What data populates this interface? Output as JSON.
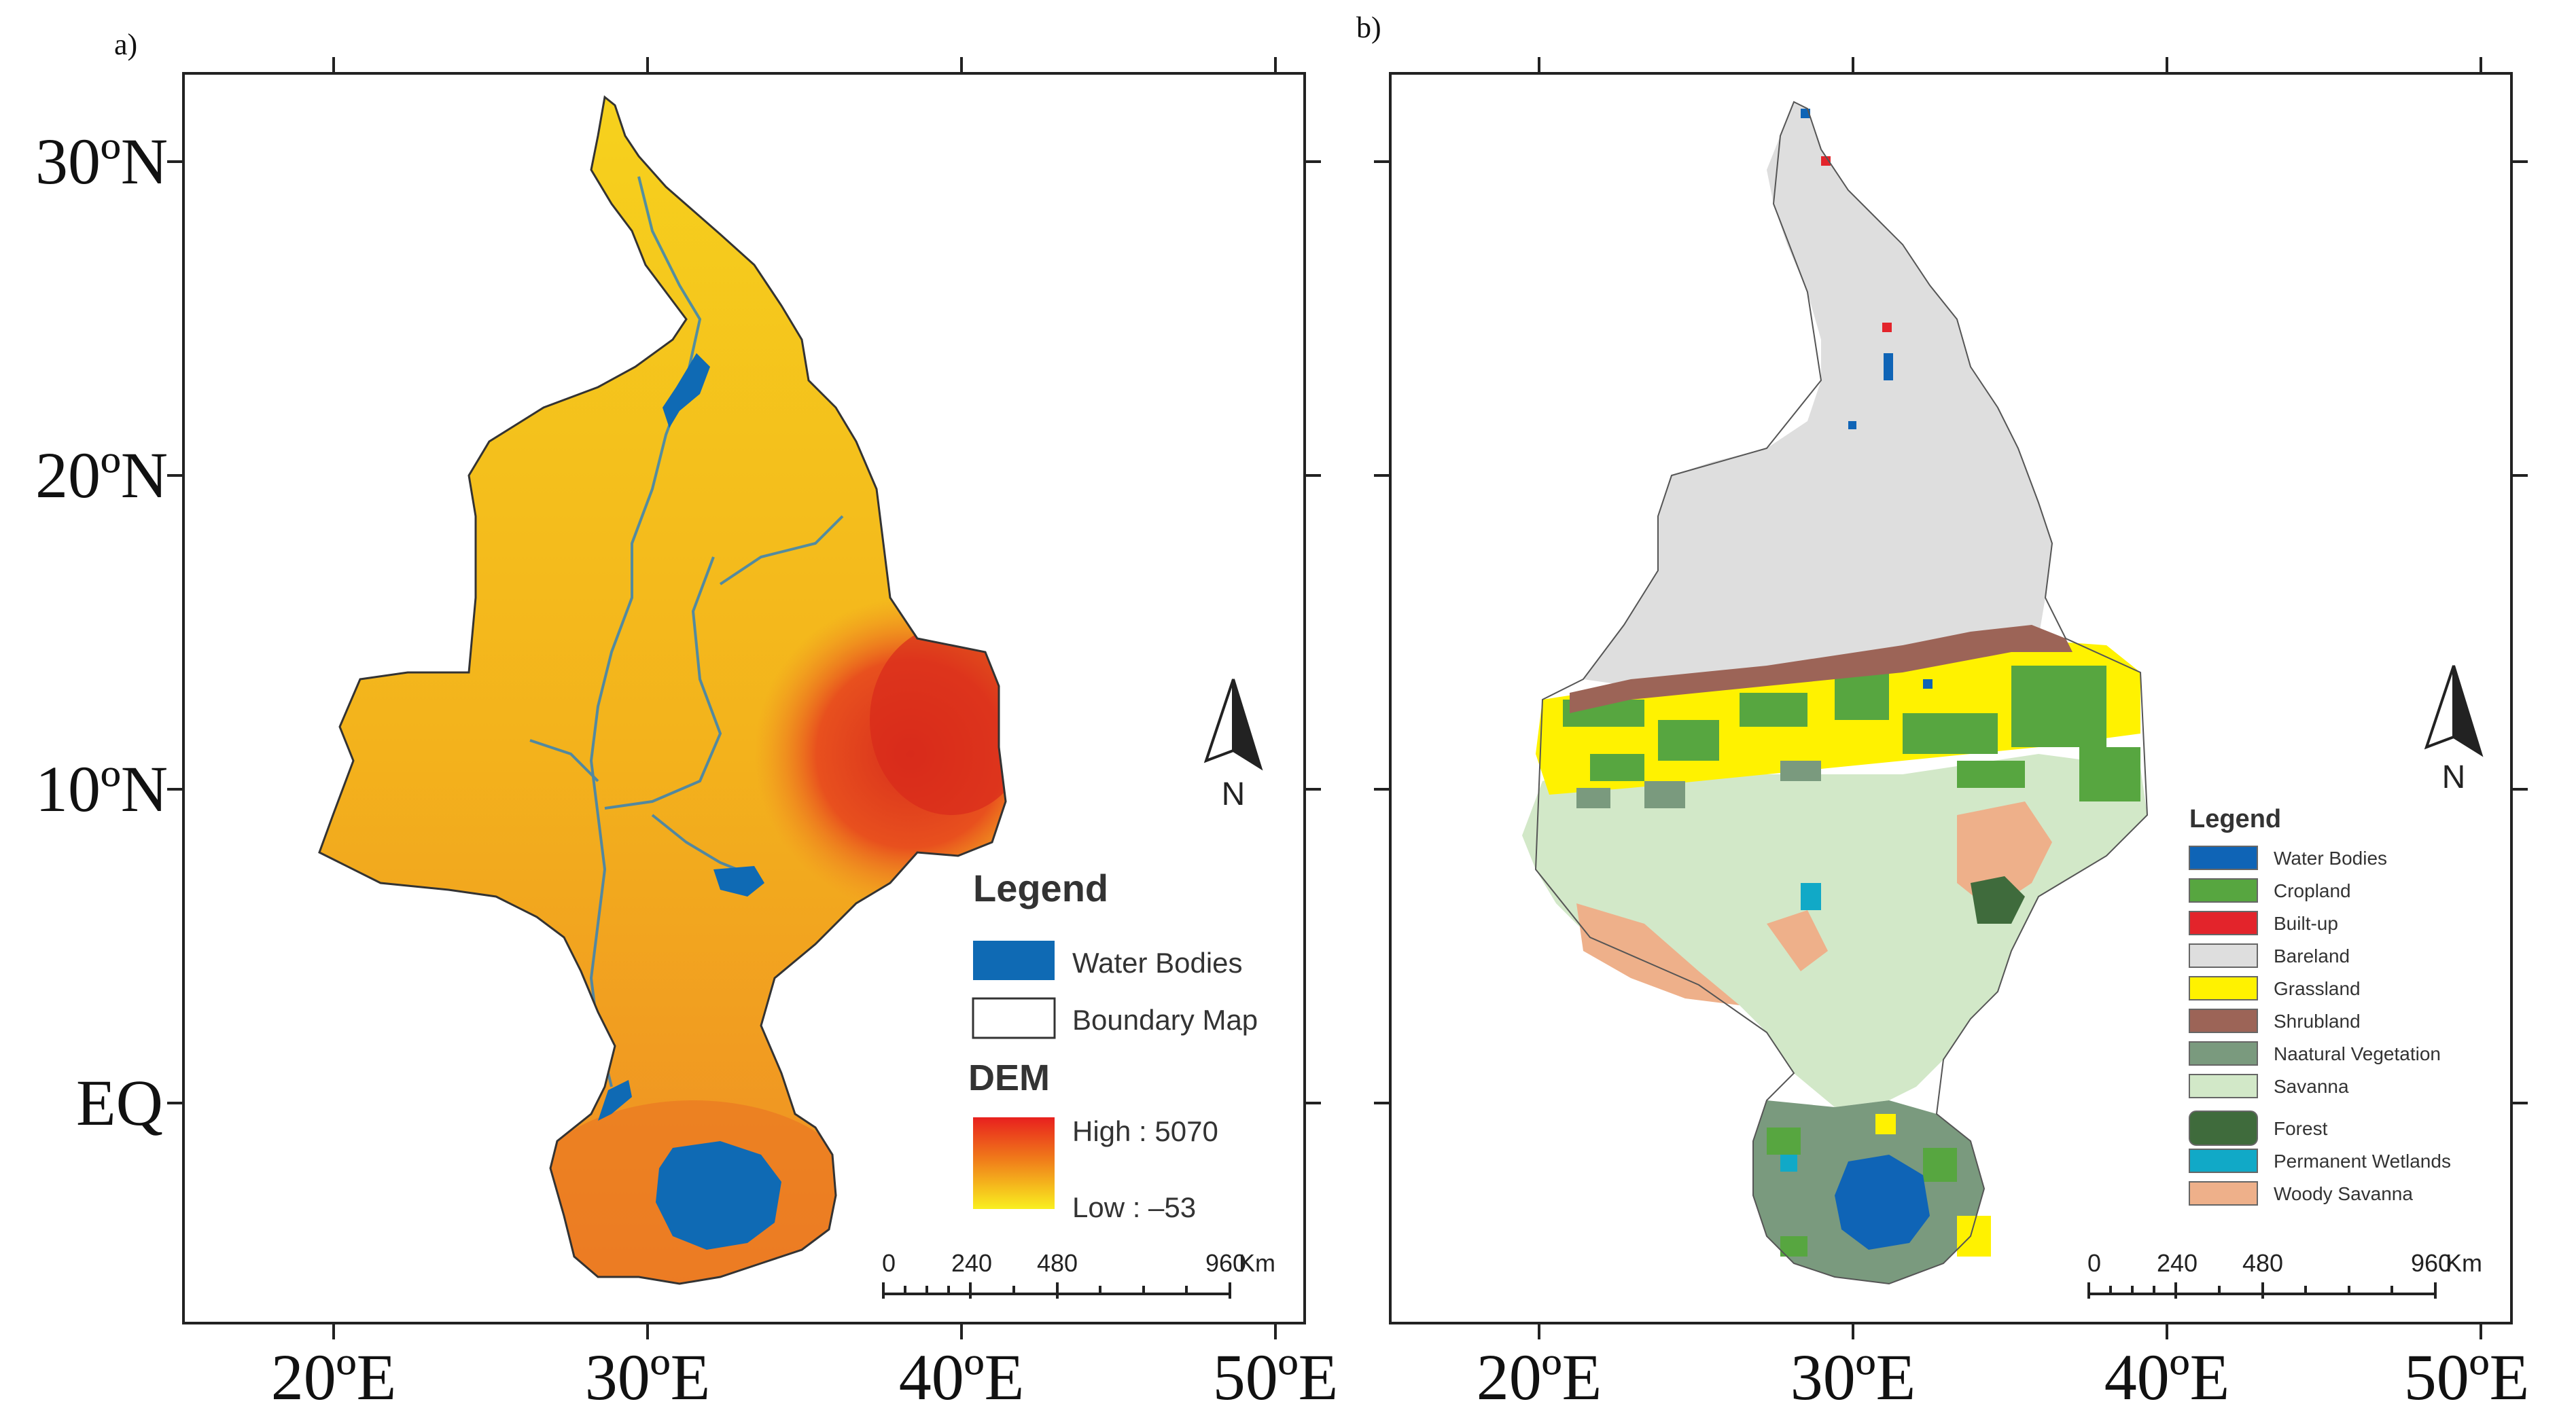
{
  "panels": [
    {
      "label": "a)",
      "legend": {
        "title": "Legend",
        "items": [
          {
            "label": "Water Bodies",
            "color": "#0f6ab4"
          },
          {
            "label": "Boundary Map",
            "color": "#ffffff"
          }
        ],
        "dem": {
          "title": "DEM",
          "high_label": "High : 5070",
          "low_label": "Low : –53",
          "gradient_top": "#e8201e",
          "gradient_mid": "#f07a1a",
          "gradient_bottom": "#f9ef1f"
        }
      },
      "scalebar": {
        "ticks": [
          "0",
          "240",
          "480",
          "960"
        ],
        "unit": "Km"
      },
      "north_label": "N"
    },
    {
      "label": "b)",
      "legend": {
        "title": "Legend",
        "items": [
          {
            "label": "Water Bodies",
            "color": "#0f64b6"
          },
          {
            "label": "Cropland",
            "color": "#57a640"
          },
          {
            "label": "Built-up",
            "color": "#e3242b"
          },
          {
            "label": "Bareland",
            "color": "#dedede"
          },
          {
            "label": "Grassland",
            "color": "#fff200"
          },
          {
            "label": "Shrubland",
            "color": "#9c6457"
          },
          {
            "label": "Naatural Vegetation",
            "color": "#7a9a7e"
          },
          {
            "label": "Savanna",
            "color": "#d2e8c8"
          },
          {
            "label": "Forest",
            "color": "#3f6b3c"
          },
          {
            "label": "Permanent Wetlands",
            "color": "#11a9c7"
          },
          {
            "label": "Woody Savanna",
            "color": "#eeb08a"
          }
        ]
      },
      "scalebar": {
        "ticks": [
          "0",
          "240",
          "480",
          "960"
        ],
        "unit": "Km"
      },
      "north_label": "N"
    }
  ],
  "axes": {
    "lat_labels": [
      "30ºN",
      "20ºN",
      "10ºN",
      "EQ"
    ],
    "lon_labels": [
      "20ºE",
      "30ºE",
      "40ºE",
      "50ºE"
    ]
  },
  "colors": {
    "dem_base": "#f3b21c",
    "dem_north": "#f6d21d",
    "dem_south": "#ef8a25",
    "dem_highland": "#e8501e",
    "water": "#0f6ab4",
    "outline": "#333333"
  }
}
